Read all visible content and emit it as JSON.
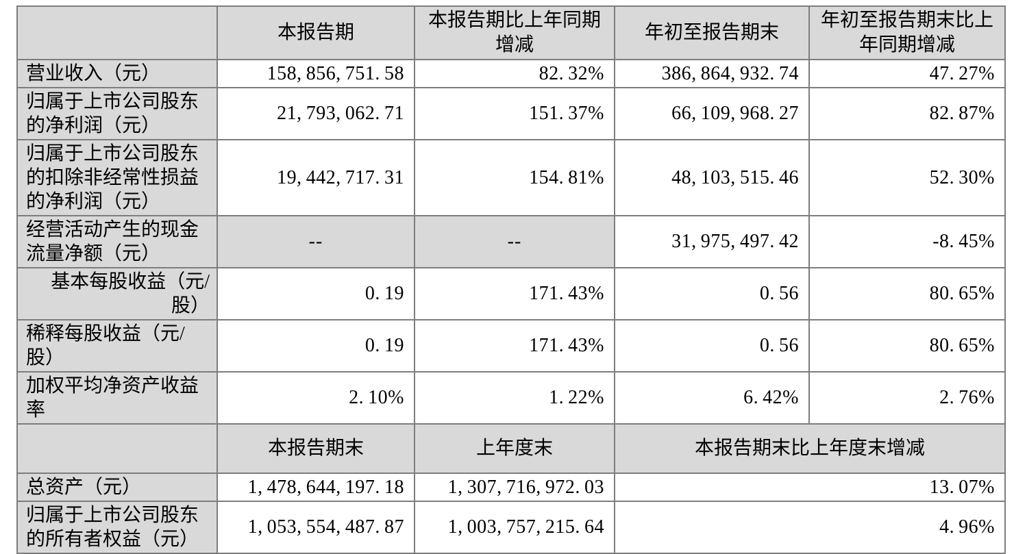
{
  "colors": {
    "cell_gray": "#d9d9d9",
    "grid_line": "#7d7d7d",
    "highlight_box_border": "#000000",
    "page_background": "#ffffff"
  },
  "header_row_1": {
    "corner": "",
    "cols": [
      "本报告期",
      "本报告期比上年同期\n增减",
      "年初至报告期末",
      "年初至报告期末比上\n年同期增减"
    ]
  },
  "section1": {
    "rows": [
      {
        "label": "营业收入（元）",
        "cells": [
          {
            "text": "158,856,751.58",
            "style": "val"
          },
          {
            "text": "82.32%",
            "style": "val"
          },
          {
            "text": "386,864,932.74",
            "style": "val"
          },
          {
            "text": "47.27%",
            "style": "val"
          }
        ]
      },
      {
        "label": "归属于上市公司股东\n的净利润（元）",
        "cells": [
          {
            "text": "21,793,062.71",
            "style": "val"
          },
          {
            "text": "151.37%",
            "style": "val"
          },
          {
            "text": "66,109,968.27",
            "style": "val"
          },
          {
            "text": "82.87%",
            "style": "val"
          }
        ]
      },
      {
        "label": "归属于上市公司股东\n的扣除非经常性损益\n的净利润（元）",
        "cells": [
          {
            "text": "19,442,717.31",
            "style": "val"
          },
          {
            "text": "154.81%",
            "style": "val"
          },
          {
            "text": "48,103,515.46",
            "style": "val"
          },
          {
            "text": "52.30%",
            "style": "val"
          }
        ]
      },
      {
        "label": "经营活动产生的现金\n流量净额（元）",
        "cells": [
          {
            "text": "--",
            "style": "dash"
          },
          {
            "text": "--",
            "style": "dash"
          },
          {
            "text": "31,975,497.42",
            "style": "val"
          },
          {
            "text": "-8.45%",
            "style": "val"
          }
        ]
      },
      {
        "label": "基本每股收益（元/\n股）",
        "align": "right",
        "cells": [
          {
            "text": "0.19",
            "style": "val"
          },
          {
            "text": "171.43%",
            "style": "val box"
          },
          {
            "text": "0.56",
            "style": "val"
          },
          {
            "text": "80.65%",
            "style": "val"
          }
        ]
      },
      {
        "label": "稀释每股收益（元/\n股）",
        "cells": [
          {
            "text": "0.19",
            "style": "val"
          },
          {
            "text": "171.43%",
            "style": "val box"
          },
          {
            "text": "0.56",
            "style": "val"
          },
          {
            "text": "80.65%",
            "style": "val"
          }
        ]
      },
      {
        "label": "加权平均净资产收益\n率",
        "cells": [
          {
            "text": "2.10%",
            "style": "val"
          },
          {
            "text": "1.22%",
            "style": "val"
          },
          {
            "text": "6.42%",
            "style": "val"
          },
          {
            "text": "2.76%",
            "style": "val"
          }
        ]
      }
    ]
  },
  "header_row_2": {
    "corner": "",
    "cols": [
      "本报告期末",
      "上年度末",
      "本报告期末比上年度末增减"
    ]
  },
  "section2": {
    "rows": [
      {
        "label": "总资产（元）",
        "cells": [
          {
            "text": "1,478,644,197.18",
            "style": "val"
          },
          {
            "text": "1,307,716,972.03",
            "style": "val"
          },
          {
            "text": "13.07%",
            "style": "val",
            "colspan": 2
          }
        ]
      },
      {
        "label": "归属于上市公司股东\n的所有者权益（元）",
        "cells": [
          {
            "text": "1,053,554,487.87",
            "style": "val"
          },
          {
            "text": "1,003,757,215.64",
            "style": "val"
          },
          {
            "text": "4.96%",
            "style": "val",
            "colspan": 2
          }
        ]
      }
    ]
  }
}
